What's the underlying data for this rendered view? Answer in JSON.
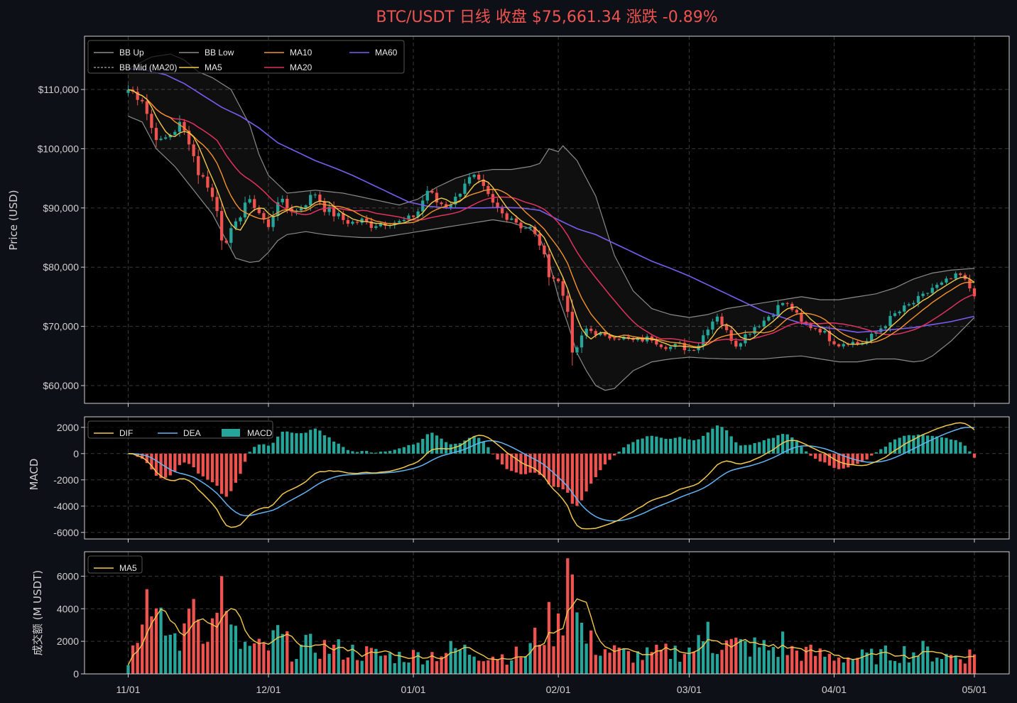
{
  "chart_data": {
    "type": "candlestick",
    "title": "BTC/USDT 日线  收盘 $75,661.34  涨跌 -0.89%",
    "colors": {
      "background": "#0d1117",
      "panel": "#000000",
      "up": "#26a69a",
      "down": "#ef5350",
      "title": "#ef5350",
      "bb": "#8a8a8a",
      "ma5": "#f2c94c",
      "ma10": "#f5922b",
      "ma20": "#e0315f",
      "ma60": "#7b5cf0",
      "dif": "#f2c94c",
      "dea": "#64b5f6"
    },
    "x_ticks": [
      {
        "label": "11/01",
        "day": 0
      },
      {
        "label": "12/01",
        "day": 30
      },
      {
        "label": "01/01",
        "day": 61
      },
      {
        "label": "02/01",
        "day": 92
      },
      {
        "label": "03/01",
        "day": 120
      },
      {
        "label": "04/01",
        "day": 151
      },
      {
        "label": "05/01",
        "day": 181
      }
    ],
    "price_panel": {
      "ylabel": "Price (USD)",
      "ylim": [
        57000,
        119000
      ],
      "yticks": [
        {
          "v": 60000,
          "label": "$60,000"
        },
        {
          "v": 70000,
          "label": "$70,000"
        },
        {
          "v": 80000,
          "label": "$80,000"
        },
        {
          "v": 90000,
          "label": "$90,000"
        },
        {
          "v": 100000,
          "label": "$100,000"
        },
        {
          "v": 110000,
          "label": "$110,000"
        }
      ],
      "legend": [
        {
          "label": "BB Up",
          "key": "bb",
          "dash": false
        },
        {
          "label": "BB Mid (MA20)",
          "key": "bb",
          "dash": true
        },
        {
          "label": "BB Low",
          "key": "bb",
          "dash": false
        },
        {
          "label": "MA5",
          "key": "ma5",
          "dash": false
        },
        {
          "label": "MA10",
          "key": "ma10",
          "dash": false
        },
        {
          "label": "MA20",
          "key": "ma20",
          "dash": false
        },
        {
          "label": "MA60",
          "key": "ma60",
          "dash": false
        }
      ],
      "close_anchors": [
        [
          0,
          110000
        ],
        [
          3,
          108500
        ],
        [
          5,
          103500
        ],
        [
          7,
          101000
        ],
        [
          9,
          102500
        ],
        [
          11,
          104000
        ],
        [
          13,
          101500
        ],
        [
          15,
          96000
        ],
        [
          17,
          94000
        ],
        [
          19,
          89500
        ],
        [
          20,
          85000
        ],
        [
          21,
          84800
        ],
        [
          23,
          87000
        ],
        [
          25,
          91000
        ],
        [
          27,
          90500
        ],
        [
          29,
          88000
        ],
        [
          30,
          86500
        ],
        [
          32,
          91500
        ],
        [
          34,
          90000
        ],
        [
          36,
          89500
        ],
        [
          38,
          91000
        ],
        [
          40,
          92500
        ],
        [
          42,
          90000
        ],
        [
          44,
          89000
        ],
        [
          46,
          88000
        ],
        [
          48,
          87500
        ],
        [
          50,
          87800
        ],
        [
          52,
          87200
        ],
        [
          54,
          87500
        ],
        [
          56,
          87800
        ],
        [
          58,
          87500
        ],
        [
          60,
          88000
        ],
        [
          62,
          89500
        ],
        [
          64,
          93000
        ],
        [
          66,
          91000
        ],
        [
          68,
          90500
        ],
        [
          70,
          91500
        ],
        [
          72,
          94500
        ],
        [
          74,
          95000
        ],
        [
          76,
          93000
        ],
        [
          78,
          90500
        ],
        [
          80,
          89000
        ],
        [
          82,
          88500
        ],
        [
          84,
          87000
        ],
        [
          86,
          86500
        ],
        [
          88,
          84000
        ],
        [
          90,
          79000
        ],
        [
          92,
          77500
        ],
        [
          94,
          73000
        ],
        [
          95,
          65000
        ],
        [
          96,
          66500
        ],
        [
          98,
          69500
        ],
        [
          100,
          69000
        ],
        [
          102,
          68000
        ],
        [
          104,
          68500
        ],
        [
          106,
          68000
        ],
        [
          108,
          67500
        ],
        [
          110,
          67800
        ],
        [
          112,
          68000
        ],
        [
          114,
          67000
        ],
        [
          116,
          66500
        ],
        [
          118,
          66800
        ],
        [
          120,
          66000
        ],
        [
          122,
          67000
        ],
        [
          124,
          70000
        ],
        [
          126,
          72000
        ],
        [
          128,
          69000
        ],
        [
          130,
          67000
        ],
        [
          132,
          68500
        ],
        [
          134,
          70000
        ],
        [
          136,
          71000
        ],
        [
          138,
          72500
        ],
        [
          140,
          74000
        ],
        [
          142,
          73000
        ],
        [
          144,
          70500
        ],
        [
          146,
          70000
        ],
        [
          148,
          69500
        ],
        [
          150,
          68000
        ],
        [
          152,
          67000
        ],
        [
          154,
          67500
        ],
        [
          156,
          67000
        ],
        [
          158,
          67500
        ],
        [
          160,
          69000
        ],
        [
          162,
          70500
        ],
        [
          164,
          72000
        ],
        [
          166,
          73000
        ],
        [
          168,
          74000
        ],
        [
          170,
          75000
        ],
        [
          172,
          76500
        ],
        [
          174,
          77000
        ],
        [
          176,
          78000
        ],
        [
          178,
          78500
        ],
        [
          180,
          76500
        ],
        [
          181,
          75661
        ]
      ],
      "bb_up_anchors": [
        [
          0,
          113500
        ],
        [
          5,
          115500
        ],
        [
          9,
          116000
        ],
        [
          12,
          115000
        ],
        [
          15,
          113000
        ],
        [
          18,
          112000
        ],
        [
          22,
          110000
        ],
        [
          26,
          104000
        ],
        [
          28,
          99000
        ],
        [
          30,
          95500
        ],
        [
          34,
          92500
        ],
        [
          40,
          93000
        ],
        [
          46,
          92500
        ],
        [
          52,
          91500
        ],
        [
          58,
          90500
        ],
        [
          62,
          91500
        ],
        [
          66,
          93500
        ],
        [
          70,
          95000
        ],
        [
          74,
          96000
        ],
        [
          78,
          96500
        ],
        [
          82,
          96500
        ],
        [
          86,
          97000
        ],
        [
          88,
          97500
        ],
        [
          90,
          100000
        ],
        [
          92,
          99500
        ],
        [
          93,
          100500
        ],
        [
          96,
          98000
        ],
        [
          100,
          92000
        ],
        [
          104,
          82000
        ],
        [
          108,
          76000
        ],
        [
          112,
          73000
        ],
        [
          116,
          72000
        ],
        [
          120,
          71500
        ],
        [
          124,
          72000
        ],
        [
          128,
          73000
        ],
        [
          132,
          73500
        ],
        [
          136,
          74000
        ],
        [
          140,
          74500
        ],
        [
          144,
          75000
        ],
        [
          148,
          74500
        ],
        [
          152,
          74500
        ],
        [
          156,
          75000
        ],
        [
          160,
          75500
        ],
        [
          164,
          76500
        ],
        [
          168,
          78000
        ],
        [
          172,
          79000
        ],
        [
          176,
          79500
        ],
        [
          181,
          79800
        ]
      ],
      "bb_low_anchors": [
        [
          0,
          105500
        ],
        [
          3,
          104500
        ],
        [
          6,
          100000
        ],
        [
          10,
          97000
        ],
        [
          14,
          93000
        ],
        [
          18,
          89000
        ],
        [
          21,
          84500
        ],
        [
          23,
          81500
        ],
        [
          26,
          80800
        ],
        [
          28,
          81000
        ],
        [
          30,
          82500
        ],
        [
          32,
          84500
        ],
        [
          34,
          85500
        ],
        [
          38,
          86000
        ],
        [
          42,
          85500
        ],
        [
          46,
          85200
        ],
        [
          50,
          85000
        ],
        [
          54,
          85000
        ],
        [
          58,
          85500
        ],
        [
          62,
          86000
        ],
        [
          66,
          86500
        ],
        [
          70,
          87000
        ],
        [
          74,
          87500
        ],
        [
          78,
          88000
        ],
        [
          82,
          87500
        ],
        [
          86,
          86500
        ],
        [
          88,
          85000
        ],
        [
          90,
          81000
        ],
        [
          92,
          75000
        ],
        [
          94,
          70500
        ],
        [
          96,
          65500
        ],
        [
          98,
          62500
        ],
        [
          100,
          60000
        ],
        [
          102,
          59200
        ],
        [
          104,
          59500
        ],
        [
          106,
          61000
        ],
        [
          108,
          62500
        ],
        [
          112,
          64000
        ],
        [
          116,
          64500
        ],
        [
          120,
          64800
        ],
        [
          124,
          64600
        ],
        [
          128,
          64500
        ],
        [
          132,
          64500
        ],
        [
          136,
          64500
        ],
        [
          140,
          64800
        ],
        [
          144,
          65000
        ],
        [
          148,
          64500
        ],
        [
          152,
          64000
        ],
        [
          156,
          64000
        ],
        [
          160,
          64500
        ],
        [
          164,
          64500
        ],
        [
          168,
          64000
        ],
        [
          170,
          64200
        ],
        [
          172,
          65000
        ],
        [
          176,
          67500
        ],
        [
          181,
          71500
        ]
      ],
      "ma60_anchors": [
        [
          0,
          113500
        ],
        [
          4,
          113200
        ],
        [
          8,
          112500
        ],
        [
          12,
          111000
        ],
        [
          16,
          109000
        ],
        [
          20,
          107000
        ],
        [
          24,
          105500
        ],
        [
          28,
          103500
        ],
        [
          32,
          101000
        ],
        [
          36,
          99500
        ],
        [
          40,
          98000
        ],
        [
          44,
          96800
        ],
        [
          48,
          95500
        ],
        [
          52,
          94000
        ],
        [
          56,
          92500
        ],
        [
          60,
          91000
        ],
        [
          64,
          90300
        ],
        [
          68,
          90000
        ],
        [
          72,
          90000
        ],
        [
          76,
          90000
        ],
        [
          80,
          90100
        ],
        [
          84,
          90000
        ],
        [
          88,
          89600
        ],
        [
          92,
          88000
        ],
        [
          96,
          86500
        ],
        [
          100,
          85500
        ],
        [
          104,
          84000
        ],
        [
          108,
          82500
        ],
        [
          112,
          81000
        ],
        [
          116,
          79800
        ],
        [
          120,
          78500
        ],
        [
          124,
          77000
        ],
        [
          128,
          75500
        ],
        [
          132,
          74000
        ],
        [
          136,
          72500
        ],
        [
          140,
          71500
        ],
        [
          144,
          70500
        ],
        [
          148,
          69900
        ],
        [
          152,
          69500
        ],
        [
          156,
          69000
        ],
        [
          160,
          69200
        ],
        [
          164,
          69500
        ],
        [
          168,
          69800
        ],
        [
          172,
          70300
        ],
        [
          176,
          70800
        ],
        [
          181,
          71700
        ]
      ]
    },
    "macd_panel": {
      "ylabel": "MACD",
      "ylim": [
        -6500,
        2800
      ],
      "yticks": [
        {
          "v": -6000,
          "label": "-6000"
        },
        {
          "v": -4000,
          "label": "-4000"
        },
        {
          "v": -2000,
          "label": "-2000"
        },
        {
          "v": 0,
          "label": "0"
        },
        {
          "v": 2000,
          "label": "2000"
        }
      ],
      "legend": [
        {
          "label": "DIF",
          "key": "dif",
          "type": "line"
        },
        {
          "label": "DEA",
          "key": "dea",
          "type": "line"
        },
        {
          "label": "MACD",
          "key": "up",
          "type": "bar"
        }
      ]
    },
    "volume_panel": {
      "ylabel": "成交额 (M USDT)",
      "ylim": [
        0,
        7500
      ],
      "yticks": [
        {
          "v": 0,
          "label": "0"
        },
        {
          "v": 2000,
          "label": "2000"
        },
        {
          "v": 4000,
          "label": "4000"
        },
        {
          "v": 6000,
          "label": "6000"
        }
      ],
      "legend": [
        {
          "label": "MA5",
          "key": "ma5",
          "type": "line"
        }
      ],
      "base_volume_anchors": [
        [
          0,
          900
        ],
        [
          3,
          3000
        ],
        [
          5,
          3200
        ],
        [
          7,
          2800
        ],
        [
          10,
          2200
        ],
        [
          12,
          2200
        ],
        [
          15,
          3400
        ],
        [
          18,
          3000
        ],
        [
          20,
          3500
        ],
        [
          22,
          2500
        ],
        [
          24,
          1800
        ],
        [
          27,
          1500
        ],
        [
          30,
          1600
        ],
        [
          32,
          2300
        ],
        [
          35,
          1500
        ],
        [
          40,
          1700
        ],
        [
          45,
          1500
        ],
        [
          50,
          1300
        ],
        [
          55,
          1100
        ],
        [
          60,
          1100
        ],
        [
          65,
          1200
        ],
        [
          70,
          1500
        ],
        [
          75,
          1300
        ],
        [
          80,
          1100
        ],
        [
          85,
          1200
        ],
        [
          88,
          2500
        ],
        [
          90,
          3000
        ],
        [
          92,
          2800
        ],
        [
          94,
          5500
        ],
        [
          96,
          3500
        ],
        [
          98,
          2000
        ],
        [
          102,
          1500
        ],
        [
          106,
          1200
        ],
        [
          110,
          1100
        ],
        [
          115,
          1300
        ],
        [
          120,
          1500
        ],
        [
          124,
          2000
        ],
        [
          128,
          1800
        ],
        [
          132,
          1700
        ],
        [
          136,
          1600
        ],
        [
          140,
          1500
        ],
        [
          145,
          1300
        ],
        [
          150,
          1100
        ],
        [
          155,
          1000
        ],
        [
          160,
          1100
        ],
        [
          165,
          1300
        ],
        [
          170,
          1400
        ],
        [
          175,
          1100
        ],
        [
          181,
          1200
        ]
      ],
      "volume_spikes": [
        [
          4,
          5200
        ],
        [
          13,
          4000
        ],
        [
          14,
          4600
        ],
        [
          20,
          6000
        ],
        [
          32,
          3000
        ],
        [
          94,
          7100
        ],
        [
          95,
          6100
        ],
        [
          124,
          3200
        ],
        [
          140,
          2600
        ]
      ]
    }
  }
}
